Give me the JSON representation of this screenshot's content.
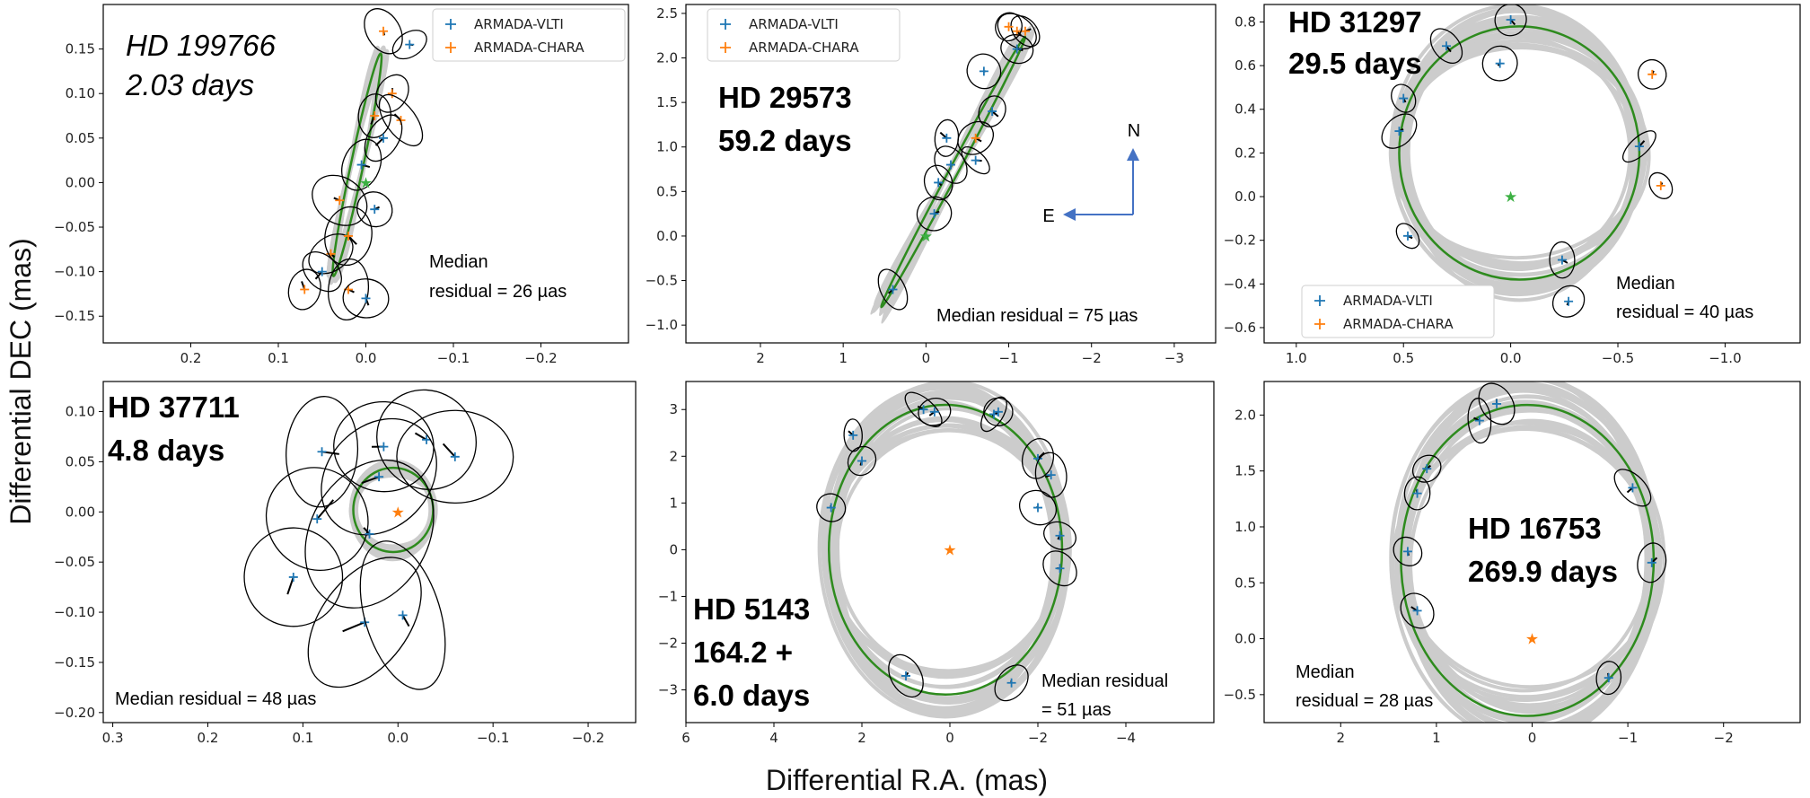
{
  "figure": {
    "x_axis_label": "Differential R.A. (mas)",
    "y_axis_label": "Differential DEC (mas)"
  },
  "compass": {
    "north_label": "N",
    "east_label": "E"
  },
  "colors": {
    "vlti": "#1f77b4",
    "chara": "#ff7f0e",
    "fit": "#2e8b1e",
    "orbits": "#cccccc",
    "ellipse": "#000000",
    "center_star_green": "#3cb043",
    "center_star_orange": "#ff7f0e"
  },
  "chart_data": [
    {
      "type": "scatter",
      "title_line1": "HD 199766",
      "title_line2": "2.03 days",
      "title_style": "italic",
      "annotation_line1": "Median",
      "annotation_line2": "residual = 26 µas",
      "legend": [
        "ARMADA-VLTI",
        "ARMADA-CHARA"
      ],
      "xlim": [
        0.3,
        -0.3
      ],
      "ylim": [
        -0.18,
        0.2
      ],
      "x_ticks": [
        0.2,
        0.1,
        0.0,
        -0.1,
        -0.2
      ],
      "x_tick_labels": [
        "0.2",
        "0.1",
        "0.0",
        "−0.1",
        "−0.2"
      ],
      "y_ticks": [
        0.15,
        0.1,
        0.05,
        0.0,
        -0.05,
        -0.1,
        -0.15
      ],
      "y_tick_labels": [
        "0.15",
        "0.10",
        "0.05",
        "0.00",
        "−0.05",
        "−0.10",
        "−0.15"
      ],
      "orbit": {
        "cx": 0.01,
        "cy": 0.02,
        "a": 0.13,
        "b": 0.007,
        "angle_deg": 78
      },
      "center_star": {
        "x": 0.0,
        "y": 0.0,
        "color": "green"
      },
      "points": [
        {
          "x": -0.05,
          "y": 0.155,
          "s": "vlti"
        },
        {
          "x": -0.02,
          "y": 0.17,
          "s": "chara"
        },
        {
          "x": -0.03,
          "y": 0.1,
          "s": "chara"
        },
        {
          "x": -0.01,
          "y": 0.075,
          "s": "chara"
        },
        {
          "x": -0.04,
          "y": 0.07,
          "s": "chara"
        },
        {
          "x": -0.02,
          "y": 0.05,
          "s": "vlti"
        },
        {
          "x": 0.005,
          "y": 0.02,
          "s": "vlti"
        },
        {
          "x": 0.03,
          "y": -0.02,
          "s": "chara"
        },
        {
          "x": -0.01,
          "y": -0.03,
          "s": "vlti"
        },
        {
          "x": 0.04,
          "y": -0.08,
          "s": "chara"
        },
        {
          "x": 0.05,
          "y": -0.1,
          "s": "vlti"
        },
        {
          "x": 0.07,
          "y": -0.12,
          "s": "chara"
        },
        {
          "x": 0.02,
          "y": -0.12,
          "s": "chara"
        },
        {
          "x": 0.0,
          "y": -0.13,
          "s": "vlti"
        },
        {
          "x": 0.02,
          "y": -0.06,
          "s": "chara"
        }
      ]
    },
    {
      "type": "scatter",
      "title_line1": "HD 29573",
      "title_line2": "59.2 days",
      "title_style": "bold",
      "annotation_line1": "Median residual = 75 µas",
      "annotation_line2": "",
      "legend": [
        "ARMADA-VLTI",
        "ARMADA-CHARA"
      ],
      "xlim": [
        2.9,
        -3.5
      ],
      "ylim": [
        -1.2,
        2.6
      ],
      "x_ticks": [
        2,
        1,
        0,
        -1,
        -2,
        -3
      ],
      "x_tick_labels": [
        "2",
        "1",
        "0",
        "−1",
        "−2",
        "−3"
      ],
      "y_ticks": [
        2.5,
        2.0,
        1.5,
        1.0,
        0.5,
        0.0,
        -0.5,
        -1.0
      ],
      "y_tick_labels": [
        "2.5",
        "2.0",
        "1.5",
        "1.0",
        "0.5",
        "0.0",
        "−0.5",
        "−1.0"
      ],
      "orbit": {
        "cx": -0.33,
        "cy": 0.72,
        "a": 1.85,
        "b": 0.05,
        "angle_deg": 62
      },
      "center_star": {
        "x": 0.0,
        "y": 0.0,
        "color": "green"
      },
      "points": [
        {
          "x": -1.1,
          "y": 2.3,
          "s": "chara"
        },
        {
          "x": -1.2,
          "y": 2.3,
          "s": "chara"
        },
        {
          "x": -1.0,
          "y": 2.35,
          "s": "chara"
        },
        {
          "x": -1.1,
          "y": 2.1,
          "s": "vlti"
        },
        {
          "x": -0.7,
          "y": 1.85,
          "s": "vlti"
        },
        {
          "x": -0.8,
          "y": 1.4,
          "s": "vlti"
        },
        {
          "x": -0.6,
          "y": 1.1,
          "s": "chara"
        },
        {
          "x": -0.25,
          "y": 1.1,
          "s": "vlti"
        },
        {
          "x": -0.3,
          "y": 0.8,
          "s": "vlti"
        },
        {
          "x": -0.15,
          "y": 0.6,
          "s": "vlti"
        },
        {
          "x": -0.1,
          "y": 0.25,
          "s": "vlti"
        },
        {
          "x": 0.4,
          "y": -0.6,
          "s": "vlti"
        },
        {
          "x": -0.6,
          "y": 0.85,
          "s": "vlti"
        }
      ]
    },
    {
      "type": "scatter",
      "title_line1": "HD 31297",
      "title_line2": "29.5 days",
      "title_style": "bold",
      "annotation_line1": "Median",
      "annotation_line2": "residual = 40 µas",
      "legend": [
        "ARMADA-VLTI",
        "ARMADA-CHARA"
      ],
      "xlim": [
        1.15,
        -1.35
      ],
      "ylim": [
        -0.67,
        0.88
      ],
      "x_ticks": [
        1.0,
        0.5,
        0.0,
        -0.5,
        -1.0
      ],
      "x_tick_labels": [
        "1.0",
        "0.5",
        "0.0",
        "−0.5",
        "−1.0"
      ],
      "y_ticks": [
        0.8,
        0.6,
        0.4,
        0.2,
        0.0,
        -0.2,
        -0.4,
        -0.6
      ],
      "y_tick_labels": [
        "0.8",
        "0.6",
        "0.4",
        "0.2",
        "0.0",
        "−0.2",
        "−0.4",
        "−0.6"
      ],
      "orbit": {
        "cx": -0.04,
        "cy": 0.2,
        "a": 0.56,
        "b": 0.58,
        "angle_deg": 0
      },
      "center_star": {
        "x": 0.0,
        "y": 0.0,
        "color": "green"
      },
      "points": [
        {
          "x": 0.0,
          "y": 0.81,
          "s": "vlti"
        },
        {
          "x": 0.3,
          "y": 0.69,
          "s": "vlti"
        },
        {
          "x": 0.05,
          "y": 0.61,
          "s": "vlti"
        },
        {
          "x": 0.5,
          "y": 0.45,
          "s": "vlti"
        },
        {
          "x": 0.52,
          "y": 0.3,
          "s": "vlti"
        },
        {
          "x": -0.66,
          "y": 0.56,
          "s": "chara"
        },
        {
          "x": -0.6,
          "y": 0.23,
          "s": "vlti"
        },
        {
          "x": -0.7,
          "y": 0.05,
          "s": "chara"
        },
        {
          "x": 0.48,
          "y": -0.18,
          "s": "vlti"
        },
        {
          "x": -0.24,
          "y": -0.29,
          "s": "vlti"
        },
        {
          "x": -0.27,
          "y": -0.48,
          "s": "vlti"
        }
      ]
    },
    {
      "type": "scatter",
      "title_line1": "HD 37711",
      "title_line2": "4.8 days",
      "title_style": "bold",
      "annotation_line1": "Median residual = 48 µas",
      "annotation_line2": "",
      "legend": [],
      "xlim": [
        0.31,
        -0.25
      ],
      "ylim": [
        -0.21,
        0.13
      ],
      "x_ticks": [
        0.3,
        0.2,
        0.1,
        0.0,
        -0.1,
        -0.2
      ],
      "x_tick_labels": [
        "0.3",
        "0.2",
        "0.1",
        "0.0",
        "−0.1",
        "−0.2"
      ],
      "y_ticks": [
        0.1,
        0.05,
        0.0,
        -0.05,
        -0.1,
        -0.15,
        -0.2
      ],
      "y_tick_labels": [
        "0.10",
        "0.05",
        "0.00",
        "−0.05",
        "−0.10",
        "−0.15",
        "−0.20"
      ],
      "orbit": {
        "cx": 0.005,
        "cy": 0.002,
        "a": 0.042,
        "b": 0.042,
        "angle_deg": 0
      },
      "center_star": {
        "x": 0.0,
        "y": 0.0,
        "color": "orange"
      },
      "points": [
        {
          "x": 0.08,
          "y": 0.06,
          "s": "vlti"
        },
        {
          "x": 0.015,
          "y": 0.065,
          "s": "vlti"
        },
        {
          "x": -0.03,
          "y": 0.072,
          "s": "vlti"
        },
        {
          "x": -0.06,
          "y": 0.055,
          "s": "vlti"
        },
        {
          "x": 0.02,
          "y": 0.035,
          "s": "vlti"
        },
        {
          "x": 0.085,
          "y": -0.007,
          "s": "vlti"
        },
        {
          "x": 0.03,
          "y": -0.022,
          "s": "vlti"
        },
        {
          "x": 0.11,
          "y": -0.065,
          "s": "vlti"
        },
        {
          "x": 0.035,
          "y": -0.11,
          "s": "vlti"
        },
        {
          "x": -0.005,
          "y": -0.103,
          "s": "vlti"
        }
      ]
    },
    {
      "type": "scatter",
      "title_line1": "HD 5143",
      "title_line2": "164.2 +",
      "title_line3": "6.0 days",
      "title_style": "bold",
      "annotation_line1": "Median residual",
      "annotation_line2": "= 51 µas",
      "legend": [],
      "xlim": [
        6,
        -6
      ],
      "ylim": [
        -3.7,
        3.6
      ],
      "x_ticks": [
        6,
        4,
        2,
        0,
        -2,
        -4
      ],
      "x_tick_labels": [
        "6",
        "4",
        "2",
        "0",
        "−2",
        "−4"
      ],
      "y_ticks": [
        3,
        2,
        1,
        0,
        -1,
        -2,
        -3
      ],
      "y_tick_labels": [
        "3",
        "2",
        "1",
        "0",
        "−1",
        "−2",
        "−3"
      ],
      "orbit": {
        "cx": 0.1,
        "cy": 0.0,
        "a": 2.65,
        "b": 3.1,
        "angle_deg": 0
      },
      "center_star": {
        "x": 0.0,
        "y": 0.0,
        "color": "orange"
      },
      "points": [
        {
          "x": 0.6,
          "y": 3.0,
          "s": "vlti"
        },
        {
          "x": 0.35,
          "y": 2.95,
          "s": "vlti"
        },
        {
          "x": -1.0,
          "y": 2.9,
          "s": "vlti"
        },
        {
          "x": -1.1,
          "y": 2.95,
          "s": "vlti"
        },
        {
          "x": 2.2,
          "y": 2.45,
          "s": "vlti"
        },
        {
          "x": 2.0,
          "y": 1.9,
          "s": "vlti"
        },
        {
          "x": -2.0,
          "y": 1.95,
          "s": "vlti"
        },
        {
          "x": -2.3,
          "y": 1.6,
          "s": "vlti"
        },
        {
          "x": 2.7,
          "y": 0.9,
          "s": "vlti"
        },
        {
          "x": -2.0,
          "y": 0.9,
          "s": "vlti"
        },
        {
          "x": -2.5,
          "y": 0.3,
          "s": "vlti"
        },
        {
          "x": -2.5,
          "y": -0.4,
          "s": "vlti"
        },
        {
          "x": 1.0,
          "y": -2.7,
          "s": "vlti"
        },
        {
          "x": -1.4,
          "y": -2.85,
          "s": "vlti"
        }
      ]
    },
    {
      "type": "scatter",
      "title_line1": "HD 16753",
      "title_line2": "269.9 days",
      "title_style": "bold",
      "annotation_line1": "Median",
      "annotation_line2": "residual = 28 µas",
      "legend": [],
      "xlim": [
        2.8,
        -2.8
      ],
      "ylim": [
        -0.75,
        2.3
      ],
      "x_ticks": [
        2,
        1,
        0,
        -1,
        -2
      ],
      "x_tick_labels": [
        "2",
        "1",
        "0",
        "−1",
        "−2"
      ],
      "y_ticks": [
        2.0,
        1.5,
        1.0,
        0.5,
        0.0,
        -0.5
      ],
      "y_tick_labels": [
        "2.0",
        "1.5",
        "1.0",
        "0.5",
        "0.0",
        "−0.5"
      ],
      "orbit": {
        "cx": 0.05,
        "cy": 0.7,
        "a": 1.32,
        "b": 1.39,
        "angle_deg": 0
      },
      "center_star": {
        "x": 0.0,
        "y": 0.0,
        "color": "orange"
      },
      "points": [
        {
          "x": 0.37,
          "y": 2.1,
          "s": "vlti"
        },
        {
          "x": 0.55,
          "y": 1.95,
          "s": "vlti"
        },
        {
          "x": 1.1,
          "y": 1.52,
          "s": "vlti"
        },
        {
          "x": 1.2,
          "y": 1.3,
          "s": "vlti"
        },
        {
          "x": -1.05,
          "y": 1.35,
          "s": "vlti"
        },
        {
          "x": 1.3,
          "y": 0.78,
          "s": "vlti"
        },
        {
          "x": -1.25,
          "y": 0.68,
          "s": "vlti"
        },
        {
          "x": 1.2,
          "y": 0.25,
          "s": "vlti"
        },
        {
          "x": -0.8,
          "y": -0.35,
          "s": "vlti"
        }
      ]
    }
  ]
}
